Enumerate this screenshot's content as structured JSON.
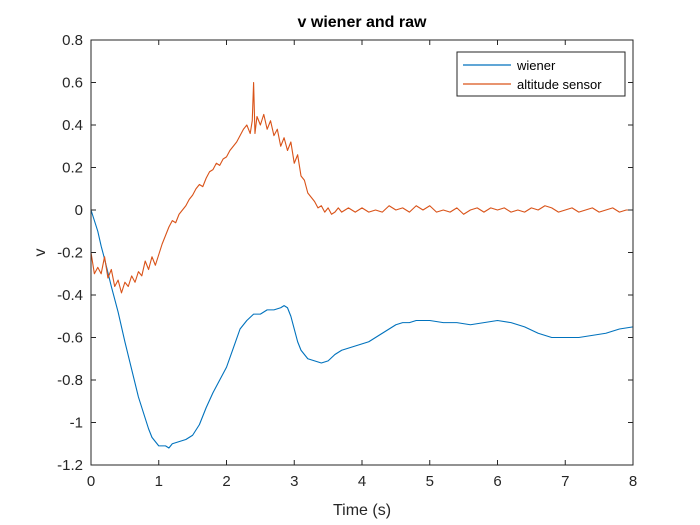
{
  "chart_data": {
    "type": "line",
    "title": "v wiener and raw",
    "xlabel": "Time (s)",
    "ylabel": "v",
    "xlim": [
      0,
      8
    ],
    "ylim": [
      -1.2,
      0.8
    ],
    "xticks": [
      0,
      1,
      2,
      3,
      4,
      5,
      6,
      7,
      8
    ],
    "xtick_labels": [
      "0",
      "1",
      "2",
      "3",
      "4",
      "5",
      "6",
      "7",
      "8"
    ],
    "yticks": [
      -1.2,
      -1.0,
      -0.8,
      -0.6,
      -0.4,
      -0.2,
      0,
      0.2,
      0.4,
      0.6,
      0.8
    ],
    "ytick_labels": [
      "-1.2",
      "-1",
      "-0.8",
      "-0.6",
      "-0.4",
      "-0.2",
      "0",
      "0.2",
      "0.4",
      "0.6",
      "0.8"
    ],
    "grid": false,
    "legend_position": "top-right",
    "series": [
      {
        "name": "wiener",
        "color": "#0072BD",
        "x": [
          0,
          0.05,
          0.1,
          0.15,
          0.2,
          0.3,
          0.4,
          0.5,
          0.6,
          0.7,
          0.8,
          0.85,
          0.9,
          0.95,
          1.0,
          1.05,
          1.1,
          1.15,
          1.2,
          1.3,
          1.4,
          1.5,
          1.6,
          1.7,
          1.8,
          1.9,
          2.0,
          2.1,
          2.2,
          2.3,
          2.4,
          2.5,
          2.6,
          2.7,
          2.8,
          2.85,
          2.9,
          2.95,
          3.0,
          3.05,
          3.1,
          3.2,
          3.3,
          3.4,
          3.5,
          3.6,
          3.7,
          3.8,
          3.9,
          4.0,
          4.1,
          4.2,
          4.3,
          4.4,
          4.5,
          4.6,
          4.7,
          4.8,
          4.9,
          5.0,
          5.2,
          5.4,
          5.6,
          5.8,
          6.0,
          6.2,
          6.4,
          6.6,
          6.8,
          7.0,
          7.2,
          7.4,
          7.6,
          7.8,
          8.0
        ],
        "y": [
          0,
          -0.05,
          -0.1,
          -0.17,
          -0.23,
          -0.36,
          -0.48,
          -0.62,
          -0.75,
          -0.88,
          -0.98,
          -1.03,
          -1.07,
          -1.09,
          -1.11,
          -1.11,
          -1.11,
          -1.12,
          -1.1,
          -1.09,
          -1.08,
          -1.06,
          -1.01,
          -0.93,
          -0.86,
          -0.8,
          -0.74,
          -0.65,
          -0.56,
          -0.52,
          -0.49,
          -0.49,
          -0.47,
          -0.47,
          -0.46,
          -0.45,
          -0.46,
          -0.5,
          -0.56,
          -0.62,
          -0.66,
          -0.7,
          -0.71,
          -0.72,
          -0.71,
          -0.68,
          -0.66,
          -0.65,
          -0.64,
          -0.63,
          -0.62,
          -0.6,
          -0.58,
          -0.56,
          -0.54,
          -0.53,
          -0.53,
          -0.52,
          -0.52,
          -0.52,
          -0.53,
          -0.53,
          -0.54,
          -0.53,
          -0.52,
          -0.53,
          -0.55,
          -0.58,
          -0.6,
          -0.6,
          -0.6,
          -0.59,
          -0.58,
          -0.56,
          -0.55
        ]
      },
      {
        "name": "altitude sensor",
        "color": "#D95319",
        "x": [
          0,
          0.05,
          0.1,
          0.15,
          0.2,
          0.25,
          0.3,
          0.35,
          0.4,
          0.45,
          0.5,
          0.55,
          0.6,
          0.65,
          0.7,
          0.75,
          0.8,
          0.85,
          0.9,
          0.95,
          1.0,
          1.05,
          1.1,
          1.15,
          1.2,
          1.25,
          1.3,
          1.35,
          1.4,
          1.45,
          1.5,
          1.55,
          1.6,
          1.65,
          1.7,
          1.75,
          1.8,
          1.85,
          1.9,
          1.95,
          2.0,
          2.05,
          2.1,
          2.15,
          2.2,
          2.25,
          2.3,
          2.35,
          2.38,
          2.4,
          2.42,
          2.45,
          2.5,
          2.55,
          2.6,
          2.65,
          2.7,
          2.75,
          2.8,
          2.85,
          2.9,
          2.95,
          3.0,
          3.05,
          3.1,
          3.15,
          3.2,
          3.25,
          3.3,
          3.35,
          3.4,
          3.45,
          3.5,
          3.55,
          3.6,
          3.65,
          3.7,
          3.8,
          3.9,
          4.0,
          4.1,
          4.2,
          4.3,
          4.4,
          4.5,
          4.6,
          4.7,
          4.8,
          4.9,
          5.0,
          5.1,
          5.2,
          5.3,
          5.4,
          5.5,
          5.6,
          5.7,
          5.8,
          5.9,
          6.0,
          6.1,
          6.2,
          6.3,
          6.4,
          6.5,
          6.6,
          6.7,
          6.8,
          6.9,
          7.0,
          7.1,
          7.2,
          7.3,
          7.4,
          7.5,
          7.6,
          7.7,
          7.8,
          7.9,
          8.0
        ],
        "y": [
          -0.2,
          -0.3,
          -0.27,
          -0.3,
          -0.22,
          -0.32,
          -0.28,
          -0.36,
          -0.33,
          -0.39,
          -0.34,
          -0.36,
          -0.31,
          -0.34,
          -0.29,
          -0.31,
          -0.24,
          -0.28,
          -0.22,
          -0.26,
          -0.21,
          -0.16,
          -0.12,
          -0.08,
          -0.05,
          -0.06,
          -0.02,
          0.0,
          0.02,
          0.05,
          0.07,
          0.1,
          0.12,
          0.11,
          0.15,
          0.18,
          0.19,
          0.22,
          0.21,
          0.24,
          0.25,
          0.28,
          0.3,
          0.32,
          0.35,
          0.38,
          0.4,
          0.36,
          0.42,
          0.6,
          0.36,
          0.44,
          0.4,
          0.45,
          0.38,
          0.42,
          0.35,
          0.38,
          0.3,
          0.34,
          0.28,
          0.32,
          0.22,
          0.26,
          0.16,
          0.14,
          0.08,
          0.06,
          0.04,
          0.01,
          0.02,
          -0.01,
          0.01,
          -0.02,
          -0.01,
          0.01,
          -0.01,
          0.01,
          -0.01,
          0.01,
          -0.01,
          0.0,
          -0.01,
          0.02,
          0.0,
          0.01,
          -0.01,
          0.02,
          0.0,
          0.02,
          -0.01,
          0.0,
          -0.01,
          0.01,
          -0.02,
          0.0,
          0.01,
          -0.01,
          0.01,
          0.0,
          0.01,
          -0.01,
          0.0,
          -0.01,
          0.01,
          0.0,
          0.02,
          0.01,
          -0.01,
          0.0,
          0.01,
          -0.01,
          0.0,
          0.01,
          -0.01,
          0.0,
          0.01,
          -0.01,
          0.0,
          0.0
        ]
      }
    ]
  }
}
